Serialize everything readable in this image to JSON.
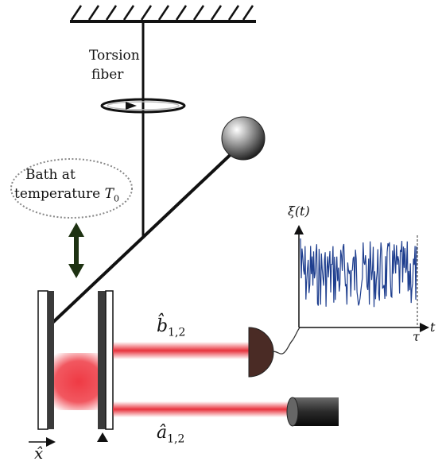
{
  "labels": {
    "torsion_line1": "Torsion",
    "torsion_line2": "fiber",
    "bath_line1": "Bath at",
    "bath_line2": "temperature",
    "bath_symbol": "T",
    "bath_subscript": "0",
    "b_operator": "b̂",
    "b_subscript": "1,2",
    "a_operator": "â",
    "a_subscript": "1,2",
    "x_operator": "x̂",
    "xi_label": "ξ(t)",
    "t_label": "t",
    "tau_label": "τ"
  },
  "colors": {
    "beam": "#e8323c",
    "noise_trace": "#1f3f8f",
    "arrow": "#1e3212",
    "mirror": "#3a3a3a",
    "detector": "#4a2b25"
  },
  "icons": {
    "detector": "photodetector-icon",
    "laser": "laser-icon",
    "ball": "ball-icon",
    "pivot": "pivot-icon"
  }
}
